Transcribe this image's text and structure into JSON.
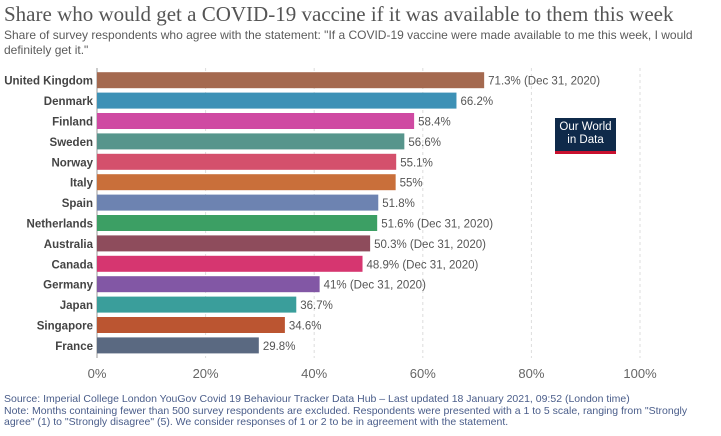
{
  "title": "Share who would get a COVID-19 vaccine if it was available to them this week",
  "subtitle": "Share of survey respondents who agree with the statement: \"If a COVID-19 vaccine were made available to me this week, I would definitely get it.\"",
  "logo": {
    "line1": "Our World",
    "line2": "in Data",
    "bg": "#0f2a4a",
    "accent": "#c8102e"
  },
  "footer": {
    "source": "Source: Imperial College London YouGov Covid 19 Behaviour Tracker Data Hub – Last updated 18 January 2021, 09:52 (London time)",
    "note": "Note: Months containing fewer than 500 survey respondents are excluded. Respondents were presented with a 1 to 5 scale, ranging from \"Strongly agree\" (1) to \"Strongly disagree\" (5). We consider responses of 1 or 2 to be in agreement with the statement."
  },
  "chart_data": {
    "type": "bar",
    "orientation": "horizontal",
    "categories": [
      "United Kingdom",
      "Denmark",
      "Finland",
      "Sweden",
      "Norway",
      "Italy",
      "Spain",
      "Netherlands",
      "Australia",
      "Canada",
      "Germany",
      "Japan",
      "Singapore",
      "France"
    ],
    "values": [
      71.3,
      66.2,
      58.4,
      56.6,
      55.1,
      55,
      51.8,
      51.6,
      50.3,
      48.9,
      41,
      36.7,
      34.6,
      29.8
    ],
    "labels": [
      "71.3% (Dec 31, 2020)",
      "66.2%",
      "58.4%",
      "56.6%",
      "55.1%",
      "55%",
      "51.8%",
      "51.6% (Dec 31, 2020)",
      "50.3% (Dec 31, 2020)",
      "48.9% (Dec 31, 2020)",
      "41% (Dec 31, 2020)",
      "36.7%",
      "34.6%",
      "29.8%"
    ],
    "colors": [
      "#a4694f",
      "#3d91b6",
      "#cf4aa2",
      "#57958c",
      "#d4506c",
      "#c96f3a",
      "#6d83b1",
      "#3c9f64",
      "#8e4c5c",
      "#d63670",
      "#8257a5",
      "#3a9e9b",
      "#bb5531",
      "#5a6981"
    ],
    "xlim": [
      0,
      100
    ],
    "xticks": [
      0,
      20,
      40,
      60,
      80,
      100
    ],
    "xtick_labels": [
      "0%",
      "20%",
      "40%",
      "60%",
      "80%",
      "100%"
    ],
    "grid": true
  }
}
